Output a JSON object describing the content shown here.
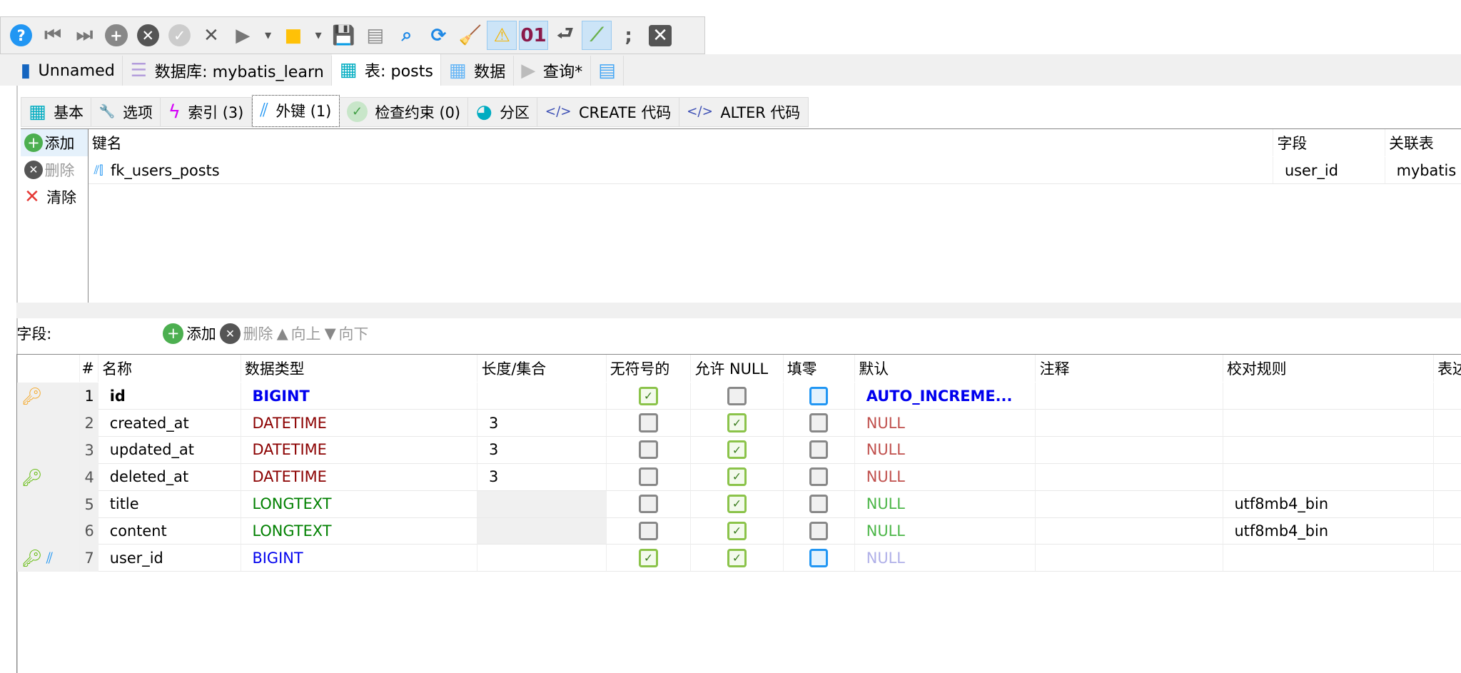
{
  "toolbar": {
    "icons": [
      "help-icon",
      "first-icon",
      "last-icon",
      "add-icon",
      "cancel-icon",
      "check-icon",
      "delete-icon",
      "run-icon",
      "dropdown-icon",
      "folder-icon",
      "dropdown-icon",
      "save-icon",
      "save-as-icon",
      "search-icon",
      "refresh-icon",
      "clean-icon",
      "warning-icon",
      "binary-icon",
      "wrap-icon",
      "link-icon",
      "semicolon-icon",
      "close-icon"
    ]
  },
  "tabs": [
    {
      "label": "Unnamed",
      "icon": "server-icon"
    },
    {
      "label": "数据库: mybatis_learn",
      "icon": "database-icon"
    },
    {
      "label": "表: posts",
      "icon": "table-icon",
      "active": true
    },
    {
      "label": "数据",
      "icon": "grid-icon"
    },
    {
      "label": "查询*",
      "icon": "play-icon"
    }
  ],
  "subtabs": [
    {
      "label": "基本",
      "icon": "table-icon"
    },
    {
      "label": "选项",
      "icon": "wrench-icon"
    },
    {
      "label": "索引 (3)",
      "icon": "lightning-icon"
    },
    {
      "label": "外键 (1)",
      "icon": "foreign-key-icon",
      "active": true
    },
    {
      "label": "检查约束 (0)",
      "icon": "check-icon"
    },
    {
      "label": "分区",
      "icon": "pie-icon"
    },
    {
      "label": "CREATE 代码",
      "icon": "code-icon"
    },
    {
      "label": "ALTER 代码",
      "icon": "code-icon"
    }
  ],
  "fk": {
    "buttons": {
      "add": "添加",
      "remove": "删除",
      "clear": "清除"
    },
    "columns": [
      "键名",
      "字段",
      "关联表"
    ],
    "rows": [
      {
        "name": "fk_users_posts",
        "field": "user_id",
        "ref": "mybatis"
      }
    ]
  },
  "fields": {
    "label": "字段:",
    "buttons": {
      "add": "添加",
      "remove": "删除",
      "up": "向上",
      "down": "向下"
    },
    "columns": [
      "#",
      "名称",
      "数据类型",
      "长度/集合",
      "无符号的",
      "允许 NULL",
      "填零",
      "默认",
      "注释",
      "校对规则",
      "表达"
    ],
    "rows": [
      {
        "num": "1",
        "name": "id",
        "type": "BIGINT",
        "length": "",
        "unsigned": true,
        "nullable": false,
        "zerofill": false,
        "default": "AUTO_INCREME...",
        "comment": "",
        "collation": "",
        "key": "primary"
      },
      {
        "num": "2",
        "name": "created_at",
        "type": "DATETIME",
        "length": "3",
        "unsigned": false,
        "nullable": true,
        "zerofill": false,
        "default": "NULL",
        "comment": "",
        "collation": ""
      },
      {
        "num": "3",
        "name": "updated_at",
        "type": "DATETIME",
        "length": "3",
        "unsigned": false,
        "nullable": true,
        "zerofill": false,
        "default": "NULL",
        "comment": "",
        "collation": ""
      },
      {
        "num": "4",
        "name": "deleted_at",
        "type": "DATETIME",
        "length": "3",
        "unsigned": false,
        "nullable": true,
        "zerofill": false,
        "default": "NULL",
        "comment": "",
        "collation": "",
        "key": "index"
      },
      {
        "num": "5",
        "name": "title",
        "type": "LONGTEXT",
        "length": "",
        "unsigned": false,
        "nullable": true,
        "zerofill": false,
        "default": "NULL",
        "comment": "",
        "collation": "utf8mb4_bin"
      },
      {
        "num": "6",
        "name": "content",
        "type": "LONGTEXT",
        "length": "",
        "unsigned": false,
        "nullable": true,
        "zerofill": false,
        "default": "NULL",
        "comment": "",
        "collation": "utf8mb4_bin"
      },
      {
        "num": "7",
        "name": "user_id",
        "type": "BIGINT",
        "length": "",
        "unsigned": true,
        "nullable": true,
        "zerofill": false,
        "default": "NULL",
        "comment": "",
        "collation": "",
        "key": "index-fk"
      }
    ]
  },
  "colors": {
    "bigint": "#0000ee",
    "datetime": "#8b0000",
    "longtext": "#008000",
    "null_dt": "#c0504d",
    "null_text": "#4cb648",
    "null_light": "#b0b0e8",
    "auto": "#0000ee"
  }
}
